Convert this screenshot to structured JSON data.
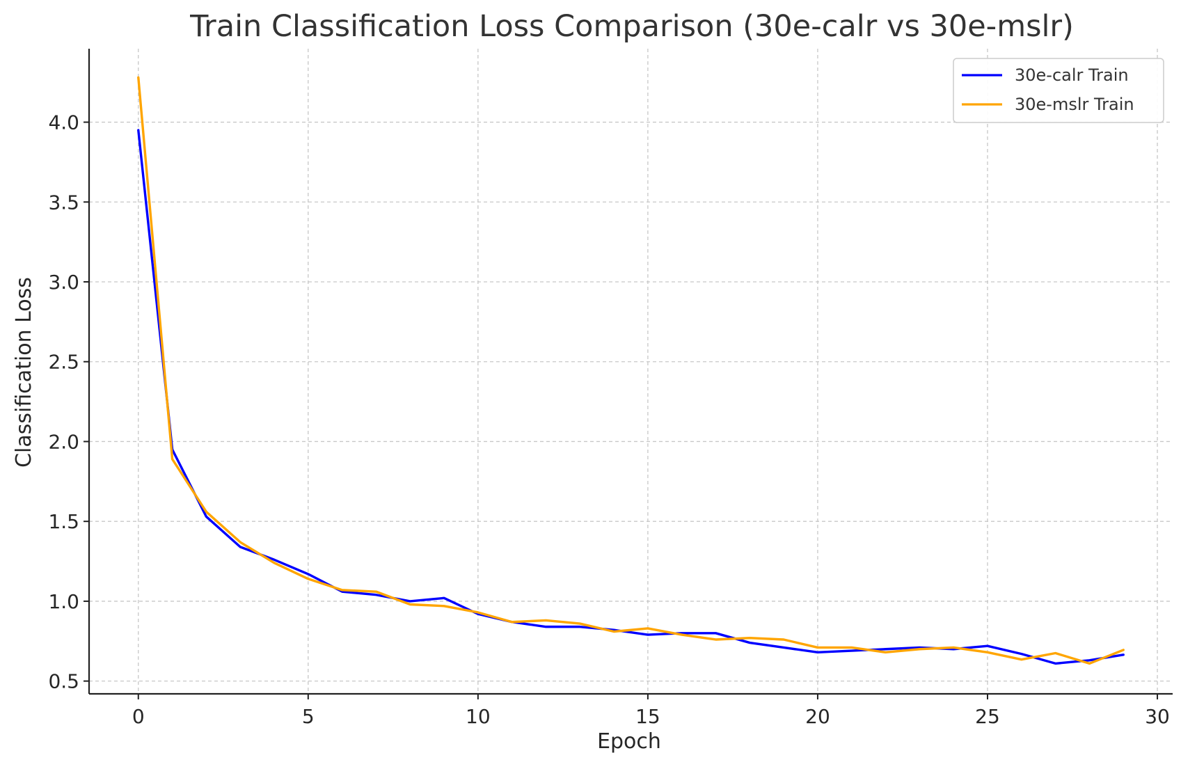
{
  "chart_data": {
    "type": "line",
    "title": "Train Classification Loss Comparison (30e-calr vs 30e-mslr)",
    "xlabel": "Epoch",
    "ylabel": "Classification Loss",
    "xlim": [
      -1.45,
      30.45
    ],
    "ylim": [
      0.42,
      4.46
    ],
    "xticks": [
      0,
      5,
      10,
      15,
      20,
      25,
      30
    ],
    "yticks": [
      0.5,
      1.0,
      1.5,
      2.0,
      2.5,
      3.0,
      3.5,
      4.0
    ],
    "xtick_labels": [
      "0",
      "5",
      "10",
      "15",
      "20",
      "25",
      "30"
    ],
    "ytick_labels": [
      "0.5",
      "1.0",
      "1.5",
      "2.0",
      "2.5",
      "3.0",
      "3.5",
      "4.0"
    ],
    "grid": true,
    "legend_position": "top-right",
    "x": [
      0,
      1,
      2,
      3,
      4,
      5,
      6,
      7,
      8,
      9,
      10,
      11,
      12,
      13,
      14,
      15,
      16,
      17,
      18,
      19,
      20,
      21,
      22,
      23,
      24,
      25,
      26,
      27,
      28,
      29
    ],
    "series": [
      {
        "name": "30e-calr Train",
        "color": "#0000ff",
        "values": [
          3.95,
          1.95,
          1.53,
          1.34,
          1.26,
          1.17,
          1.06,
          1.04,
          1.0,
          1.02,
          0.92,
          0.87,
          0.84,
          0.84,
          0.82,
          0.79,
          0.8,
          0.8,
          0.74,
          0.71,
          0.68,
          0.69,
          0.7,
          0.71,
          0.7,
          0.72,
          0.67,
          0.61,
          0.63,
          0.665
        ]
      },
      {
        "name": "30e-mslr Train",
        "color": "#ffa500",
        "values": [
          4.28,
          1.89,
          1.56,
          1.37,
          1.24,
          1.14,
          1.07,
          1.06,
          0.98,
          0.97,
          0.93,
          0.87,
          0.88,
          0.86,
          0.81,
          0.83,
          0.79,
          0.76,
          0.77,
          0.76,
          0.71,
          0.71,
          0.68,
          0.7,
          0.71,
          0.68,
          0.635,
          0.675,
          0.61,
          0.695
        ]
      }
    ]
  }
}
